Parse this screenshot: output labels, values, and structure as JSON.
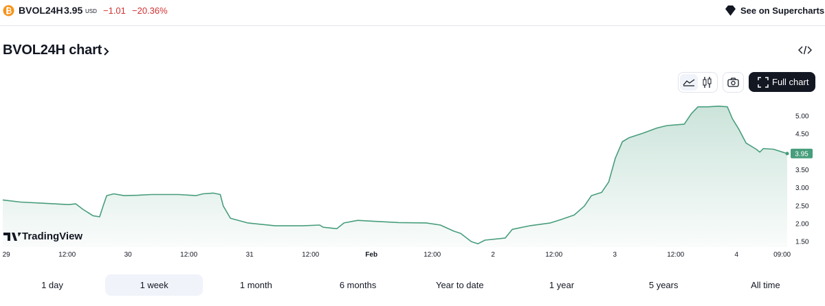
{
  "header": {
    "symbol": "BVOL24H",
    "price": "3.95",
    "currency": "USD",
    "change": "−1.01",
    "change_percent": "−20.36%",
    "link": "See on Supercharts"
  },
  "title": "BVOL24H chart",
  "toolbar": {
    "full_chart": "Full chart"
  },
  "watermark": "TradingView",
  "range_buttons": [
    "1 day",
    "1 week",
    "1 month",
    "6 months",
    "Year to date",
    "1 year",
    "5 years",
    "All time"
  ],
  "selected_range": "1 week",
  "chart_data": {
    "type": "area",
    "x": [
      -0.7,
      2.8,
      6.9,
      12.3,
      13.7,
      15.1,
      17.1,
      18.4,
      19.1,
      19.8,
      21.2,
      23.2,
      25.9,
      28.6,
      34.0,
      37.4,
      38.8,
      40.8,
      42.2,
      42.8,
      44.2,
      47.6,
      53.0,
      58.4,
      61.8,
      62.5,
      65.2,
      66.6,
      69.3,
      72.0,
      77.4,
      82.8,
      85.6,
      88.3,
      89.6,
      91.7,
      93.0,
      94.4,
      98.4,
      99.8,
      103.2,
      107.3,
      109.3,
      112.0,
      114.0,
      115.4,
      117.4,
      118.8,
      120.1,
      121.5,
      122.8,
      125.6,
      128.3,
      130.3,
      133.7,
      135.1,
      136.4,
      138.4,
      140.5,
      142.2,
      143.2,
      144.5,
      145.9,
      147.9,
      148.6,
      149.3,
      151.3,
      154.0
    ],
    "series": [
      {
        "color": "#479d7c",
        "values": [
          2.66,
          2.6,
          2.57,
          2.53,
          2.55,
          2.4,
          2.22,
          2.19,
          2.49,
          2.78,
          2.83,
          2.78,
          2.79,
          2.81,
          2.81,
          2.78,
          2.83,
          2.85,
          2.81,
          2.49,
          2.15,
          2.02,
          1.94,
          1.94,
          1.96,
          1.9,
          1.86,
          2.02,
          2.09,
          2.07,
          2.03,
          2.02,
          1.96,
          1.79,
          1.73,
          1.5,
          1.44,
          1.54,
          1.6,
          1.84,
          1.94,
          2.02,
          2.11,
          2.24,
          2.49,
          2.78,
          2.87,
          3.16,
          3.82,
          4.28,
          4.39,
          4.52,
          4.66,
          4.73,
          4.77,
          5.06,
          5.25,
          5.25,
          5.27,
          5.25,
          4.92,
          4.62,
          4.24,
          4.07,
          3.99,
          4.09,
          4.07,
          3.95
        ]
      }
    ],
    "xlim": [
      -0.7,
      154.0
    ],
    "xticks": [
      {
        "value": 0,
        "label": "29"
      },
      {
        "value": 12,
        "label": "12:00"
      },
      {
        "value": 24,
        "label": "30"
      },
      {
        "value": 36,
        "label": "12:00"
      },
      {
        "value": 48,
        "label": "31"
      },
      {
        "value": 60,
        "label": "12:00"
      },
      {
        "value": 72,
        "label": "Feb"
      },
      {
        "value": 84,
        "label": "12:00"
      },
      {
        "value": 96,
        "label": "2"
      },
      {
        "value": 108,
        "label": "12:00"
      },
      {
        "value": 120,
        "label": "3"
      },
      {
        "value": 132,
        "label": "12:00"
      },
      {
        "value": 144,
        "label": "4"
      },
      {
        "value": 153,
        "label": "09:00"
      }
    ],
    "ylim": [
      1.35,
      5.55
    ],
    "yticks": [
      {
        "value": 1.5,
        "label": "1.50"
      },
      {
        "value": 2,
        "label": "2.00"
      },
      {
        "value": 2.5,
        "label": "2.50"
      },
      {
        "value": 3,
        "label": "3.00"
      },
      {
        "value": 3.5,
        "label": "3.50"
      },
      {
        "value": 4,
        "label": "4.00"
      },
      {
        "value": 4.5,
        "label": "4.50"
      },
      {
        "value": 5,
        "label": "5.00"
      }
    ],
    "grid": false
  }
}
